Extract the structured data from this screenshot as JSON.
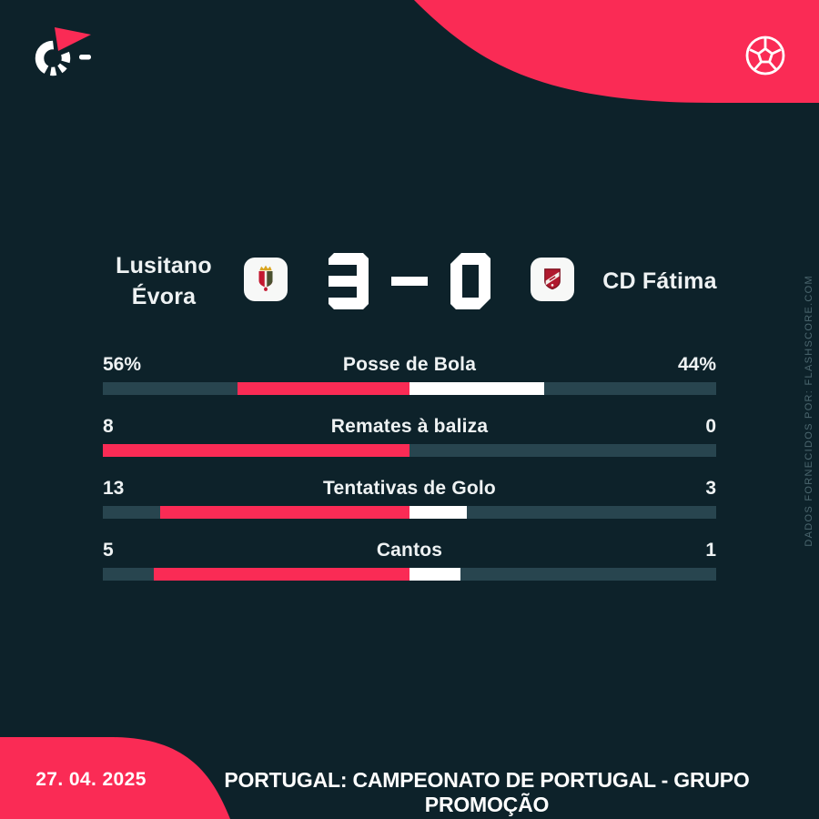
{
  "header": {
    "home_team": {
      "name_lines": [
        "Lusitano",
        "Évora"
      ]
    },
    "away_team": {
      "name_lines": [
        "CD Fátima"
      ]
    },
    "score": {
      "home": "3",
      "separator": "-",
      "away": "0"
    }
  },
  "stats": {
    "rows": [
      {
        "label": "Posse de Bola",
        "home_display": "56%",
        "away_display": "44%",
        "home_value": 56,
        "away_value": 44
      },
      {
        "label": "Remates à baliza",
        "home_display": "8",
        "away_display": "0",
        "home_value": 8,
        "away_value": 0
      },
      {
        "label": "Tentativas de Golo",
        "home_display": "13",
        "away_display": "3",
        "home_value": 13,
        "away_value": 3
      },
      {
        "label": "Cantos",
        "home_display": "5",
        "away_display": "1",
        "home_value": 5,
        "away_value": 1
      }
    ]
  },
  "footer": {
    "date": "27. 04. 2025",
    "competition": "PORTUGAL: CAMPEONATO DE PORTUGAL - GRUPO PROMOÇÃO"
  },
  "watermark": "DADOS FORNECIDOS POR: FLASHSCORE.COM",
  "icons": {
    "top_left": "flashscore-logo",
    "top_right": "football-icon",
    "home_crest": "lusitano-evora-crest",
    "away_crest": "cd-fatima-crest"
  },
  "colors": {
    "background": "#0d222a",
    "accent_pink": "#fa2b55",
    "bar_track": "#28454f",
    "bar_away": "#ffffff",
    "text": "#eef2f3",
    "muted_text": "#4c676f",
    "crest_bg": "#f7f8f7"
  },
  "chart_data": {
    "type": "bar",
    "subtype": "paired-horizontal-stat-bars",
    "title": "Lusitano Évora 3 - 0 CD Fátima",
    "categories": [
      "Posse de Bola",
      "Remates à baliza",
      "Tentativas de Golo",
      "Cantos"
    ],
    "series": [
      {
        "name": "Lusitano Évora",
        "values": [
          56,
          8,
          13,
          5
        ]
      },
      {
        "name": "CD Fátima",
        "values": [
          44,
          0,
          3,
          1
        ]
      }
    ],
    "value_format": [
      "percent",
      "count",
      "count",
      "count"
    ],
    "orientation": "horizontal",
    "legend_position": "none",
    "note": "each side fills from bar centre outward, proportional to value / (home+away)"
  }
}
